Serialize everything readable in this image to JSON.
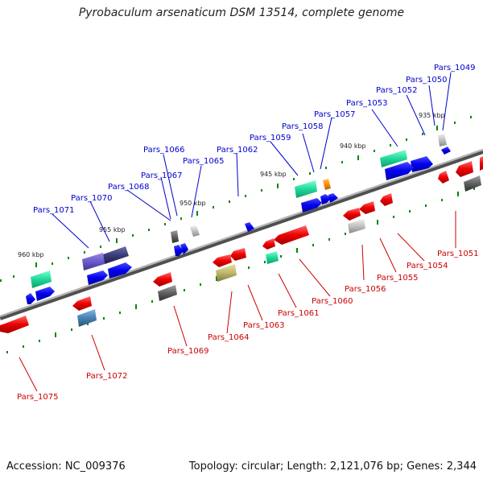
{
  "header": {
    "title": "Pyrobaculum arsenaticum DSM 13514, complete genome"
  },
  "footer": {
    "accession": "Accession: NC_009376",
    "summary": "Topology: circular; Length: 2,121,076 bp; Genes: 2,344"
  },
  "scale_labels": [
    "935 kbp",
    "940 kbp",
    "945 kbp",
    "950 kbp",
    "955 kbp",
    "960 kbp"
  ],
  "top_labels": [
    "Pars_1049",
    "Pars_1050",
    "Pars_1052",
    "Pars_1053",
    "Pars_1057",
    "Pars_1058",
    "Pars_1059",
    "Pars_1062",
    "Pars_1065",
    "Pars_1066",
    "Pars_1067",
    "Pars_1068",
    "Pars_1070",
    "Pars_1071"
  ],
  "bottom_labels": [
    "Pars_1051",
    "Pars_1054",
    "Pars_1055",
    "Pars_1056",
    "Pars_1060",
    "Pars_1061",
    "Pars_1063",
    "Pars_1064",
    "Pars_1069",
    "Pars_1072",
    "Pars_1075"
  ],
  "colors": {
    "forward_label": "#0000cc",
    "reverse_label": "#cc0000",
    "forward_gene": "#0000ee",
    "reverse_gene": "#ee0000",
    "axis": "#808080",
    "ticks": "#008800"
  }
}
